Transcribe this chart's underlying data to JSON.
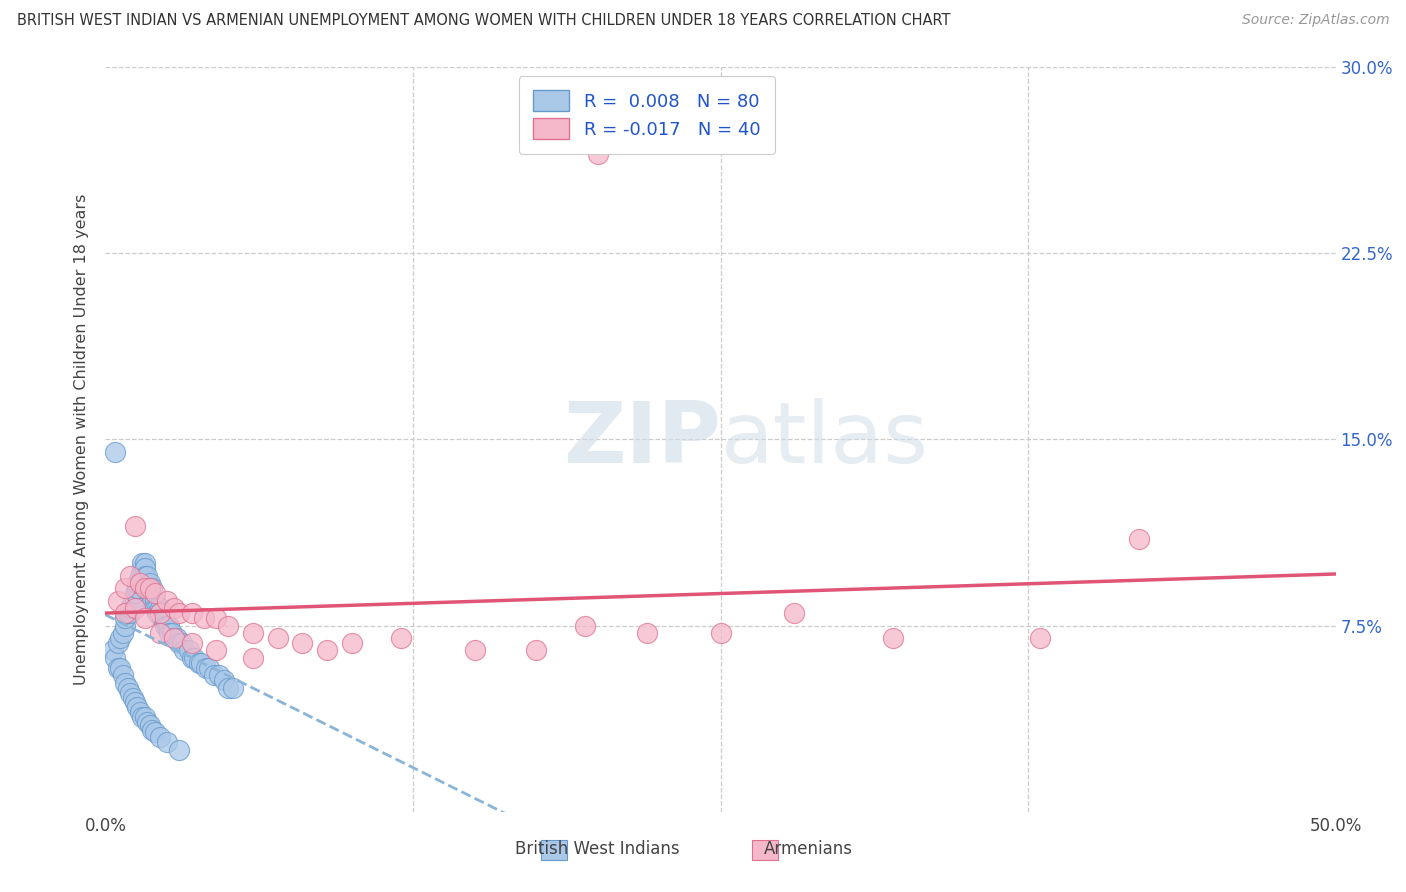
{
  "title": "BRITISH WEST INDIAN VS ARMENIAN UNEMPLOYMENT AMONG WOMEN WITH CHILDREN UNDER 18 YEARS CORRELATION CHART",
  "source": "Source: ZipAtlas.com",
  "ylabel": "Unemployment Among Women with Children Under 18 years",
  "color1": "#aac8e8",
  "color2": "#f5b8ca",
  "edge_color1": "#6699cc",
  "edge_color2": "#e07090",
  "trend_color1": "#8ab4d8",
  "trend_color2": "#e05575",
  "label1": "British West Indians",
  "label2": "Armenians",
  "r1": "0.008",
  "n1": "80",
  "r2": "-0.017",
  "n2": "40",
  "xlim": [
    0.0,
    0.5
  ],
  "ylim": [
    0.0,
    0.3
  ],
  "background": "#ffffff",
  "blue_x": [
    0.003,
    0.004,
    0.005,
    0.006,
    0.007,
    0.008,
    0.008,
    0.009,
    0.01,
    0.01,
    0.011,
    0.012,
    0.012,
    0.013,
    0.013,
    0.013,
    0.014,
    0.014,
    0.015,
    0.015,
    0.015,
    0.016,
    0.016,
    0.016,
    0.017,
    0.017,
    0.018,
    0.018,
    0.019,
    0.019,
    0.02,
    0.02,
    0.021,
    0.021,
    0.022,
    0.022,
    0.023,
    0.024,
    0.024,
    0.025,
    0.026,
    0.026,
    0.027,
    0.028,
    0.029,
    0.03,
    0.031,
    0.032,
    0.034,
    0.035,
    0.036,
    0.038,
    0.039,
    0.041,
    0.042,
    0.044,
    0.046,
    0.048,
    0.05,
    0.052,
    0.004,
    0.005,
    0.006,
    0.007,
    0.008,
    0.009,
    0.01,
    0.011,
    0.012,
    0.013,
    0.014,
    0.015,
    0.016,
    0.017,
    0.018,
    0.019,
    0.02,
    0.022,
    0.025,
    0.03
  ],
  "blue_y": [
    0.065,
    0.062,
    0.068,
    0.07,
    0.072,
    0.075,
    0.078,
    0.08,
    0.08,
    0.082,
    0.085,
    0.085,
    0.088,
    0.09,
    0.09,
    0.092,
    0.092,
    0.095,
    0.095,
    0.098,
    0.1,
    0.1,
    0.098,
    0.095,
    0.095,
    0.09,
    0.092,
    0.088,
    0.09,
    0.085,
    0.085,
    0.082,
    0.082,
    0.08,
    0.082,
    0.08,
    0.078,
    0.078,
    0.075,
    0.075,
    0.075,
    0.072,
    0.072,
    0.07,
    0.07,
    0.068,
    0.068,
    0.065,
    0.065,
    0.062,
    0.062,
    0.06,
    0.06,
    0.058,
    0.058,
    0.055,
    0.055,
    0.053,
    0.05,
    0.05,
    0.145,
    0.058,
    0.058,
    0.055,
    0.052,
    0.05,
    0.048,
    0.046,
    0.044,
    0.042,
    0.04,
    0.038,
    0.038,
    0.036,
    0.035,
    0.033,
    0.032,
    0.03,
    0.028,
    0.025
  ],
  "pink_x": [
    0.005,
    0.008,
    0.01,
    0.012,
    0.014,
    0.016,
    0.018,
    0.02,
    0.022,
    0.025,
    0.028,
    0.03,
    0.035,
    0.04,
    0.045,
    0.05,
    0.06,
    0.07,
    0.08,
    0.09,
    0.1,
    0.12,
    0.15,
    0.175,
    0.195,
    0.22,
    0.25,
    0.28,
    0.32,
    0.38,
    0.008,
    0.012,
    0.016,
    0.022,
    0.028,
    0.035,
    0.045,
    0.06,
    0.2,
    0.42
  ],
  "pink_y": [
    0.085,
    0.09,
    0.095,
    0.115,
    0.092,
    0.09,
    0.09,
    0.088,
    0.08,
    0.085,
    0.082,
    0.08,
    0.08,
    0.078,
    0.078,
    0.075,
    0.072,
    0.07,
    0.068,
    0.065,
    0.068,
    0.07,
    0.065,
    0.065,
    0.075,
    0.072,
    0.072,
    0.08,
    0.07,
    0.07,
    0.08,
    0.082,
    0.078,
    0.072,
    0.07,
    0.068,
    0.065,
    0.062,
    0.265,
    0.11
  ]
}
